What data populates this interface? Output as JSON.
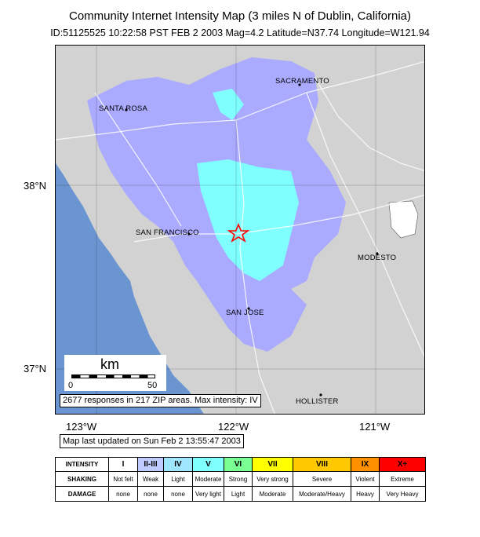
{
  "title": "Community Internet Intensity Map (3 miles N of Dublin, California)",
  "subtitle": "ID:51125525 10:22:58 PST FEB 2 2003 Mag=4.2 Latitude=N37.74 Longitude=W121.94",
  "map": {
    "lat_labels": [
      "38°N",
      "37°N"
    ],
    "lon_labels": [
      "123°W",
      "122°W",
      "121°W"
    ],
    "cities": [
      "SACRAMENTO",
      "SANTA ROSA",
      "SAN FRANCISCO",
      "MODESTO",
      "SAN JOSE",
      "HOLLISTER"
    ],
    "epicenter_symbol": "star-icon",
    "scale": {
      "unit": "km",
      "min": "0",
      "max": "50"
    },
    "responses_note": "2677 responses in 217 ZIP areas. Max intensity: IV",
    "colors": {
      "ocean": "#6b95d1",
      "land": "#d2d2d2",
      "intensity_I": "#ffffff",
      "intensity_II_III": "#aaaaff",
      "intensity_IV": "#80ffff",
      "intensity_V": "#7aff93",
      "epicenter": "#ff0000"
    }
  },
  "updated": "Map last updated on Sun Feb  2 13:55:47 2003",
  "legend": {
    "row_labels": [
      "INTENSITY",
      "SHAKING",
      "DAMAGE"
    ],
    "columns": [
      {
        "intensity": "I",
        "shaking": "Not felt",
        "damage": "none",
        "color": "#ffffff"
      },
      {
        "intensity": "II-III",
        "shaking": "Weak",
        "damage": "none",
        "color": "#bfccff"
      },
      {
        "intensity": "IV",
        "shaking": "Light",
        "damage": "none",
        "color": "#a0e6ff"
      },
      {
        "intensity": "V",
        "shaking": "Moderate",
        "damage": "Very light",
        "color": "#80ffff"
      },
      {
        "intensity": "VI",
        "shaking": "Strong",
        "damage": "Light",
        "color": "#7aff93"
      },
      {
        "intensity": "VII",
        "shaking": "Very strong",
        "damage": "Moderate",
        "color": "#ffff00"
      },
      {
        "intensity": "VIII",
        "shaking": "Severe",
        "damage": "Moderate/Heavy",
        "color": "#ffc800"
      },
      {
        "intensity": "IX",
        "shaking": "Violent",
        "damage": "Heavy",
        "color": "#ff9100"
      },
      {
        "intensity": "X+",
        "shaking": "Extreme",
        "damage": "Very Heavy",
        "color": "#ff0000"
      }
    ]
  }
}
